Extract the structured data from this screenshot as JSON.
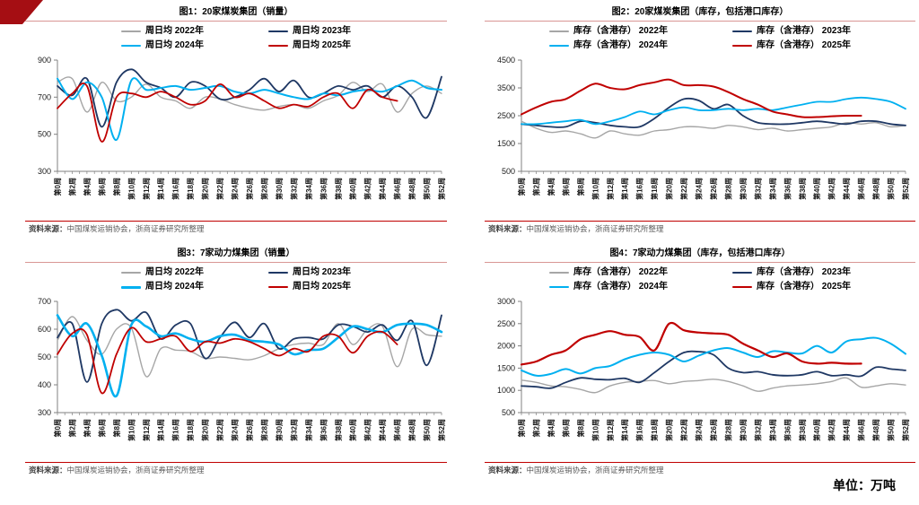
{
  "page": {
    "unit": "单位：万吨"
  },
  "source": {
    "label": "资料来源：",
    "text": "中国煤炭运销协会，浙商证券研究所整理"
  },
  "colors": {
    "y2022": "#a6a6a6",
    "y2023": "#1f3864",
    "y2024": "#00b0f0",
    "y2025": "#c00000",
    "accent_red": "#c00000",
    "corner_red": "#a50e13",
    "title_rule": "#d99694",
    "axis": "#808080"
  },
  "x_axis": {
    "weeks_total": 52,
    "week_step": 2,
    "labels": [
      "第0周",
      "第2周",
      "第4周",
      "第6周",
      "第8周",
      "第10周",
      "第12周",
      "第14周",
      "第16周",
      "第18周",
      "第20周",
      "第22周",
      "第24周",
      "第26周",
      "第28周",
      "第30周",
      "第32周",
      "第34周",
      "第36周",
      "第38周",
      "第40周",
      "第42周",
      "第44周",
      "第46周",
      "第48周",
      "第50周",
      "第52周"
    ]
  },
  "chart_data": [
    {
      "type": "line",
      "title": "图1：20家煤炭集团（销量）",
      "ylim": [
        300,
        900
      ],
      "yticks": [
        300,
        500,
        700,
        900
      ],
      "grid": false,
      "legend_position": "top",
      "series": [
        {
          "name": "周日均 2022年",
          "color": "#a6a6a6",
          "width": 1.4,
          "values": [
            780,
            800,
            620,
            780,
            680,
            700,
            770,
            700,
            680,
            640,
            700,
            690,
            660,
            640,
            630,
            650,
            660,
            640,
            680,
            710,
            780,
            730,
            770,
            620,
            720,
            760,
            720
          ]
        },
        {
          "name": "周日均 2023年",
          "color": "#1f3864",
          "width": 1.8,
          "values": [
            760,
            710,
            800,
            540,
            780,
            850,
            780,
            750,
            700,
            780,
            760,
            690,
            700,
            740,
            800,
            730,
            790,
            700,
            720,
            760,
            740,
            760,
            700,
            760,
            700,
            590,
            810
          ]
        },
        {
          "name": "周日均 2024年",
          "color": "#00b0f0",
          "width": 2.0,
          "values": [
            800,
            690,
            780,
            700,
            470,
            790,
            740,
            750,
            760,
            740,
            750,
            760,
            730,
            720,
            740,
            720,
            700,
            690,
            720,
            710,
            730,
            740,
            730,
            760,
            790,
            750,
            740
          ]
        },
        {
          "name": "周日均 2025年",
          "color": "#c00000",
          "width": 1.8,
          "values": [
            640,
            720,
            760,
            460,
            700,
            720,
            700,
            730,
            700,
            660,
            680,
            770,
            700,
            720,
            680,
            640,
            660,
            650,
            700,
            720,
            640,
            740,
            700,
            680
          ]
        }
      ]
    },
    {
      "type": "line",
      "title": "图2：20家煤炭集团（库存，包括港口库存）",
      "ylim": [
        500,
        4500
      ],
      "yticks": [
        500,
        1500,
        2500,
        3500,
        4500
      ],
      "grid": false,
      "legend_position": "top",
      "series": [
        {
          "name": "库存（含港存） 2022年",
          "color": "#a6a6a6",
          "width": 1.4,
          "values": [
            2300,
            2050,
            1900,
            1950,
            1850,
            1700,
            1950,
            1850,
            1800,
            1950,
            2000,
            2100,
            2100,
            2050,
            2150,
            2100,
            2000,
            2050,
            1950,
            2000,
            2050,
            2100,
            2250,
            2200,
            2250,
            2100,
            2150
          ]
        },
        {
          "name": "库存（含港存） 2023年",
          "color": "#1f3864",
          "width": 1.8,
          "values": [
            2200,
            2150,
            2100,
            2100,
            2300,
            2250,
            2150,
            2100,
            2100,
            2400,
            2800,
            3100,
            3050,
            2750,
            2900,
            2500,
            2250,
            2200,
            2200,
            2250,
            2300,
            2250,
            2200,
            2300,
            2300,
            2200,
            2150
          ]
        },
        {
          "name": "库存（含港存） 2024年",
          "color": "#00b0f0",
          "width": 1.8,
          "values": [
            2200,
            2200,
            2250,
            2300,
            2350,
            2200,
            2300,
            2450,
            2650,
            2550,
            2700,
            2800,
            2700,
            2700,
            2750,
            2700,
            2750,
            2700,
            2800,
            2900,
            3000,
            3000,
            3100,
            3150,
            3100,
            3000,
            2750
          ]
        },
        {
          "name": "库存（含港存） 2025年",
          "color": "#c00000",
          "width": 2.0,
          "values": [
            2550,
            2800,
            3000,
            3100,
            3400,
            3650,
            3500,
            3450,
            3600,
            3700,
            3800,
            3600,
            3600,
            3550,
            3350,
            3100,
            2900,
            2650,
            2550,
            2450,
            2450,
            2480,
            2500,
            2500
          ]
        }
      ]
    },
    {
      "type": "line",
      "title": "图3：7家动力煤集团（销量）",
      "ylim": [
        300,
        700
      ],
      "yticks": [
        300,
        400,
        500,
        600,
        700
      ],
      "grid": false,
      "legend_position": "top",
      "series": [
        {
          "name": "周日均 2022年",
          "color": "#a6a6a6",
          "width": 1.4,
          "values": [
            560,
            645,
            560,
            510,
            600,
            605,
            430,
            530,
            525,
            520,
            495,
            500,
            495,
            490,
            505,
            530,
            545,
            550,
            545,
            620,
            545,
            600,
            610,
            465,
            600,
            580,
            575
          ]
        },
        {
          "name": "周日均 2023年",
          "color": "#1f3864",
          "width": 1.8,
          "values": [
            570,
            620,
            410,
            620,
            670,
            630,
            660,
            565,
            615,
            620,
            495,
            570,
            625,
            570,
            620,
            530,
            565,
            570,
            565,
            615,
            610,
            590,
            615,
            560,
            630,
            470,
            650
          ]
        },
        {
          "name": "周日均 2024年",
          "color": "#00b0f0",
          "width": 2.6,
          "values": [
            650,
            575,
            620,
            505,
            360,
            615,
            610,
            575,
            585,
            565,
            555,
            575,
            580,
            560,
            555,
            545,
            510,
            525,
            530,
            570,
            610,
            600,
            590,
            615,
            620,
            615,
            590
          ]
        },
        {
          "name": "周日均 2025年",
          "color": "#c00000",
          "width": 1.8,
          "values": [
            510,
            585,
            580,
            370,
            510,
            605,
            555,
            565,
            575,
            520,
            555,
            550,
            565,
            555,
            530,
            505,
            530,
            520,
            575,
            575,
            515,
            575,
            590,
            545
          ]
        }
      ]
    },
    {
      "type": "line",
      "title": "图4：7家动力煤集团（库存，包括港口库存）",
      "ylim": [
        500,
        3000
      ],
      "yticks": [
        500,
        1000,
        1500,
        2000,
        2500,
        3000
      ],
      "grid": false,
      "legend_position": "top",
      "series": [
        {
          "name": "库存（含港存） 2022年",
          "color": "#a6a6a6",
          "width": 1.4,
          "values": [
            1230,
            1180,
            1100,
            1080,
            1020,
            950,
            1100,
            1180,
            1200,
            1220,
            1150,
            1200,
            1220,
            1250,
            1200,
            1100,
            980,
            1050,
            1100,
            1120,
            1150,
            1200,
            1280,
            1070,
            1100,
            1150,
            1120
          ]
        },
        {
          "name": "库存（含港存） 2023年",
          "color": "#1f3864",
          "width": 1.8,
          "values": [
            1100,
            1080,
            1050,
            1180,
            1280,
            1250,
            1240,
            1270,
            1180,
            1400,
            1650,
            1850,
            1870,
            1800,
            1500,
            1400,
            1420,
            1350,
            1330,
            1350,
            1420,
            1330,
            1350,
            1320,
            1520,
            1480,
            1450
          ]
        },
        {
          "name": "库存（含港存） 2024年",
          "color": "#00b0f0",
          "width": 2.0,
          "values": [
            1450,
            1330,
            1370,
            1480,
            1380,
            1500,
            1550,
            1700,
            1800,
            1850,
            1800,
            1650,
            1780,
            1900,
            1950,
            1850,
            1750,
            1880,
            1850,
            1830,
            2000,
            1850,
            2100,
            2150,
            2180,
            2050,
            1820
          ]
        },
        {
          "name": "库存（含港存） 2025年",
          "color": "#c00000",
          "width": 2.2,
          "values": [
            1580,
            1650,
            1800,
            1900,
            2150,
            2250,
            2330,
            2250,
            2200,
            1900,
            2500,
            2350,
            2300,
            2280,
            2250,
            2050,
            1900,
            1750,
            1830,
            1650,
            1600,
            1620,
            1600,
            1600
          ]
        }
      ]
    }
  ]
}
